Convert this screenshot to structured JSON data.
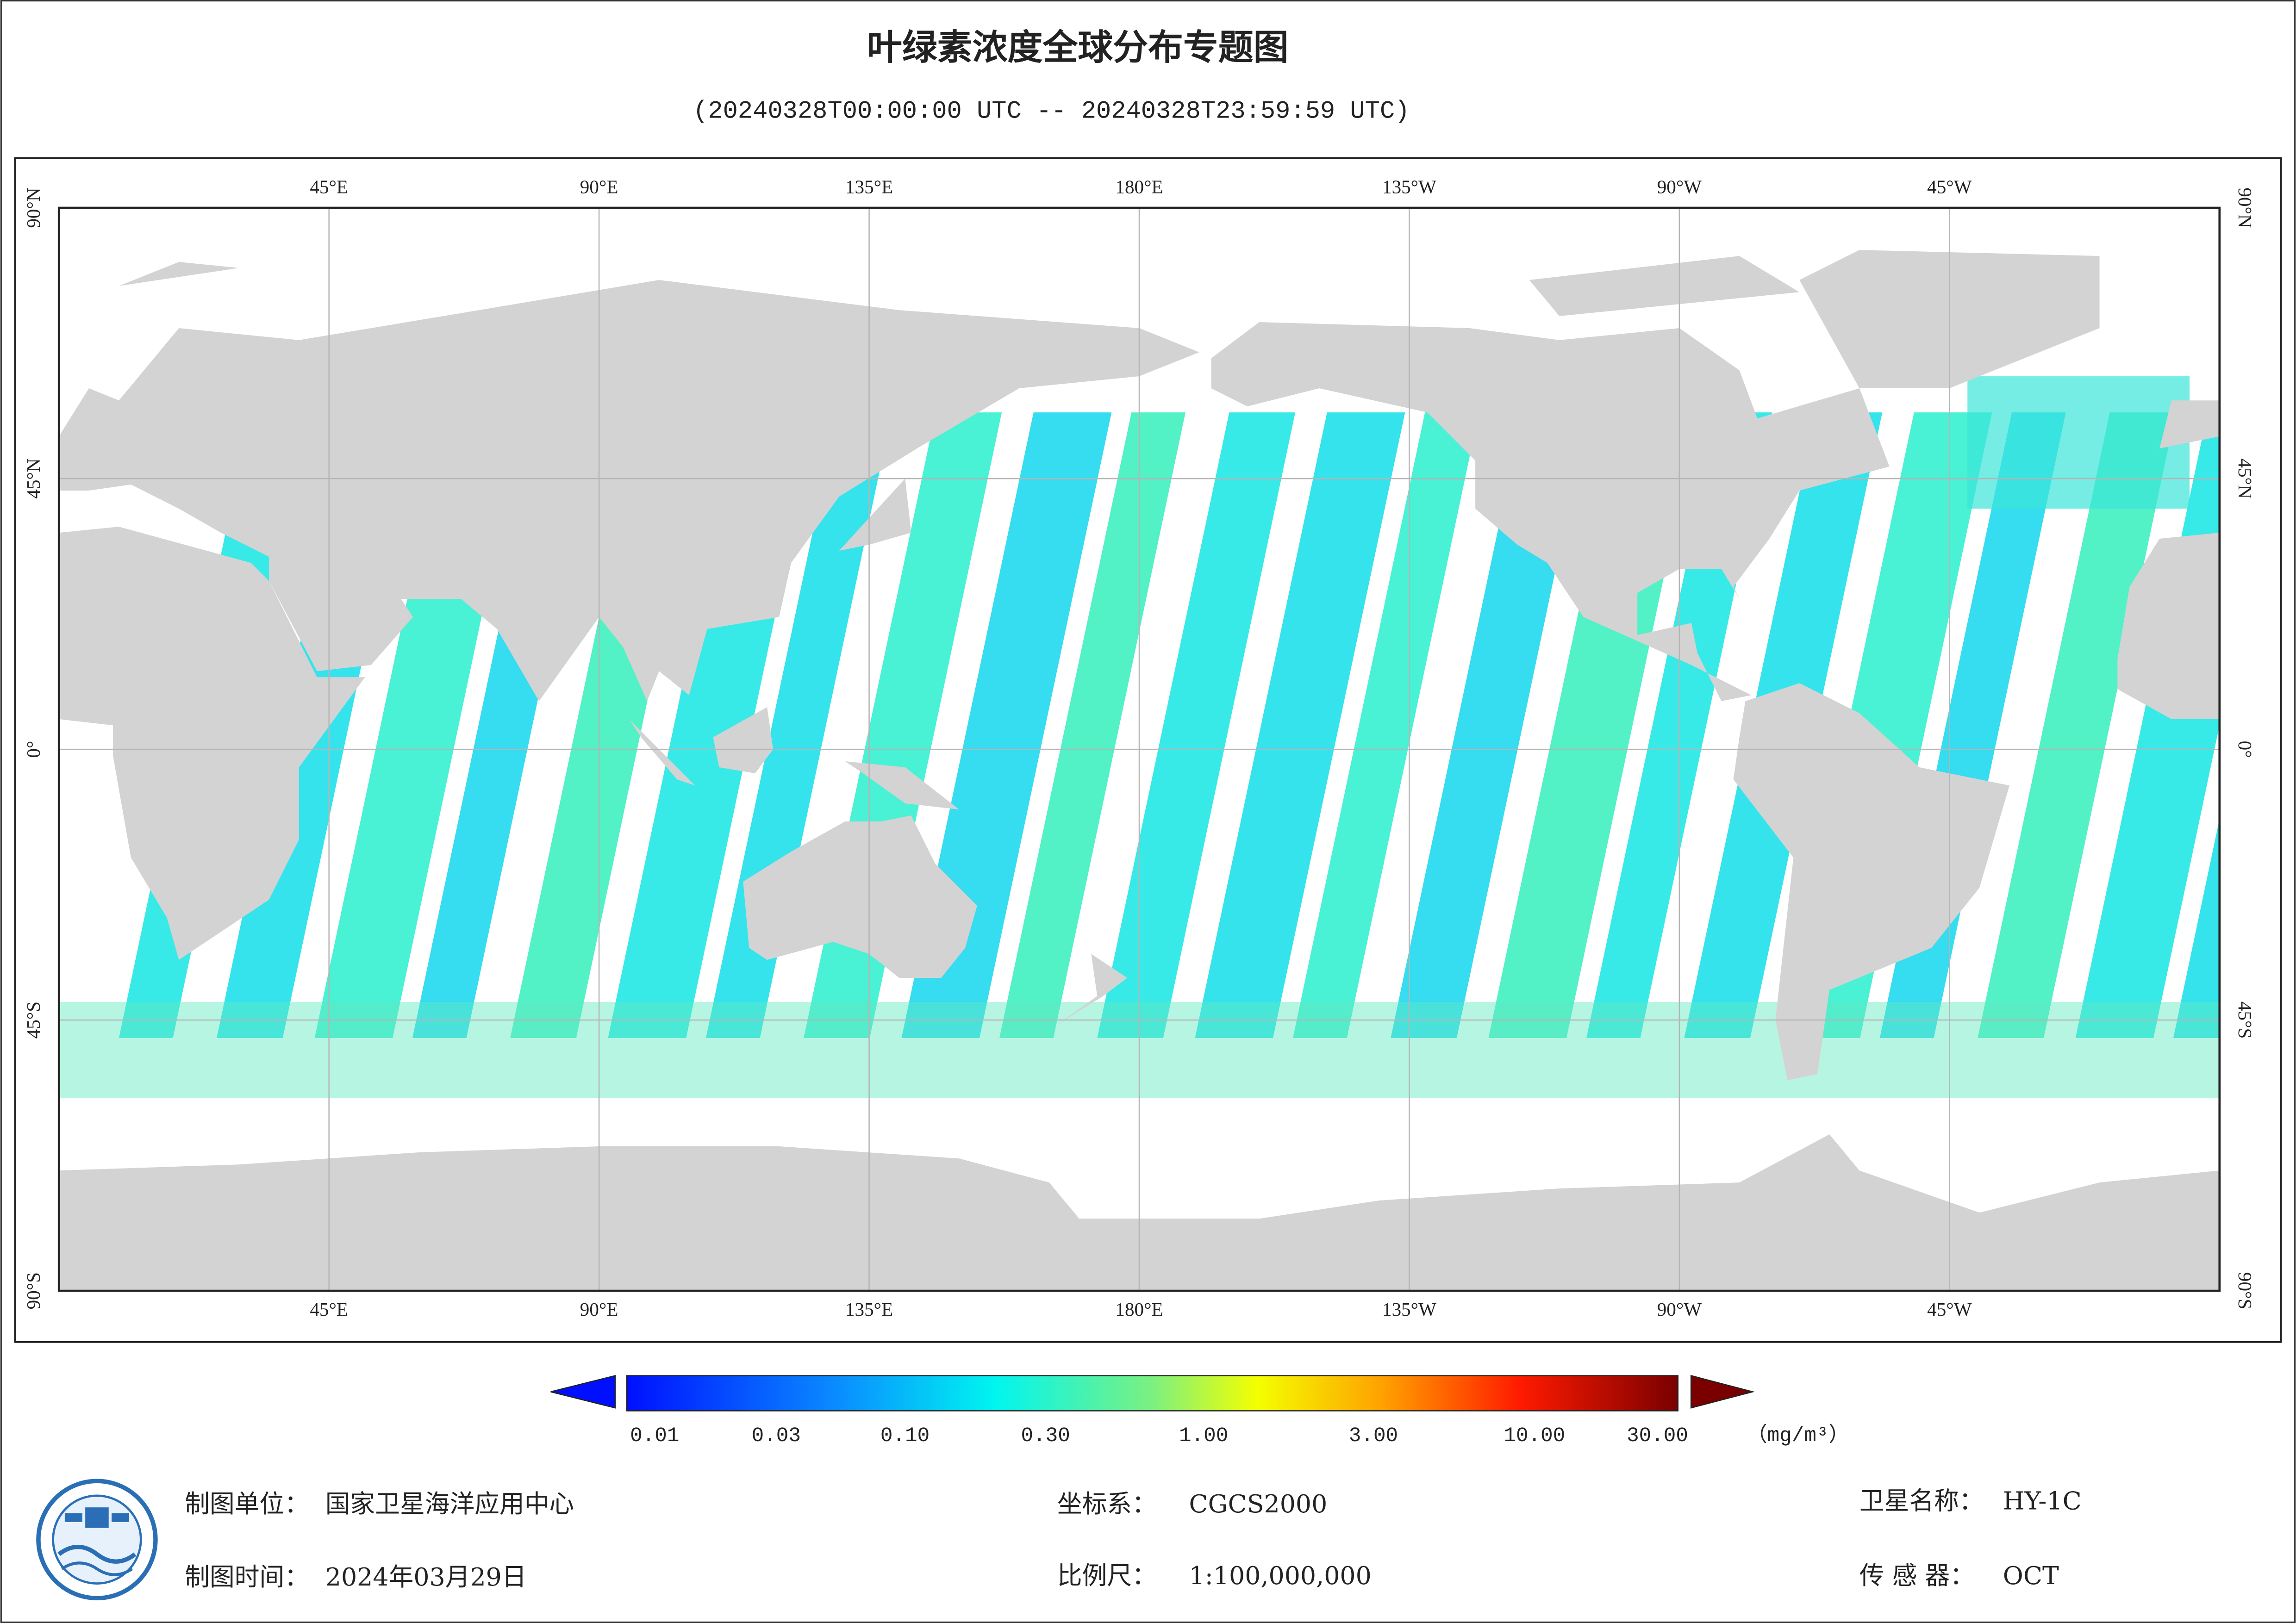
{
  "title": "叶绿素浓度全球分布专题图",
  "subtitle": "(20240328T00:00:00 UTC -- 20240328T23:59:59 UTC)",
  "map": {
    "lon_labels": [
      "45°E",
      "90°E",
      "135°E",
      "180°E",
      "135°W",
      "90°W",
      "45°W"
    ],
    "lat_labels": [
      "90°N",
      "45°N",
      "0°",
      "45°S",
      "90°S"
    ]
  },
  "colorbar": {
    "labels": [
      "0.01",
      "0.03",
      "0.10",
      "0.30",
      "1.00",
      "3.00",
      "10.00",
      "30.00"
    ],
    "unit": "（mg/m³）"
  },
  "footer": {
    "unit_label": "制图单位：",
    "unit": "国家卫星海洋应用中心",
    "crs_label": "坐标系：",
    "crs": "CGCS2000",
    "satellite_label": "卫星名称：",
    "satellite": "HY-1C",
    "date_label": "制图时间：",
    "date": "2024年03月29日",
    "scale_label": "比例尺：",
    "scale": "1:100,000,000",
    "sensor_label": "传 感 器：",
    "sensor": "OCT"
  }
}
